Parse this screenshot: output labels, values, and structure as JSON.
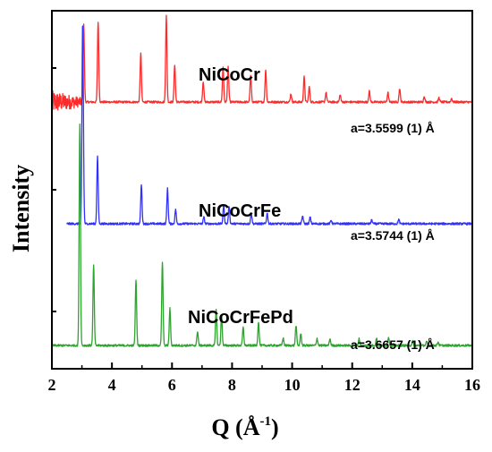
{
  "chart_data": {
    "type": "line",
    "xlabel": "Q (Å⁻¹)",
    "xlabel_main": "Q (Å",
    "xlabel_sup": "-1",
    "xlabel_tail": ")",
    "ylabel": "Intensity",
    "xlim": [
      2,
      16
    ],
    "x_ticks": [
      2,
      4,
      6,
      8,
      10,
      12,
      14,
      16
    ],
    "x_tick_labels": [
      "2",
      "4",
      "6",
      "8",
      "10",
      "12",
      "14",
      "16"
    ],
    "y_ticks": "unlabeled",
    "grid": false,
    "series": [
      {
        "name": "NiCoCr",
        "lattice_label": "a=3.5599 (1) Å",
        "color": "#ff2a2a",
        "x_start": 2.0,
        "noise_until": 3.0,
        "baseline": 0.745,
        "peaks": [
          [
            3.06,
            0.218
          ],
          [
            3.54,
            0.225
          ],
          [
            4.96,
            0.136
          ],
          [
            5.81,
            0.241
          ],
          [
            6.09,
            0.105
          ],
          [
            7.04,
            0.058
          ],
          [
            7.7,
            0.098
          ],
          [
            7.87,
            0.098
          ],
          [
            8.62,
            0.074
          ],
          [
            9.12,
            0.09
          ],
          [
            9.96,
            0.023
          ],
          [
            10.4,
            0.07
          ],
          [
            10.57,
            0.042
          ],
          [
            11.13,
            0.027
          ],
          [
            11.6,
            0.02
          ],
          [
            12.57,
            0.03
          ],
          [
            13.19,
            0.026
          ],
          [
            13.58,
            0.038
          ],
          [
            14.4,
            0.016
          ],
          [
            14.89,
            0.012
          ],
          [
            15.31,
            0.01
          ]
        ]
      },
      {
        "name": "NiCoCrFe",
        "lattice_label": "a=3.5744 (1) Å",
        "color": "#3131ff",
        "x_start": 2.5,
        "baseline": 0.405,
        "peaks": [
          [
            3.02,
            0.432
          ],
          [
            3.04,
            0.18
          ],
          [
            3.52,
            0.189
          ],
          [
            4.98,
            0.109
          ],
          [
            5.85,
            0.098
          ],
          [
            6.12,
            0.04
          ],
          [
            7.06,
            0.018
          ],
          [
            7.72,
            0.051
          ],
          [
            7.9,
            0.05
          ],
          [
            8.64,
            0.029
          ],
          [
            9.17,
            0.03
          ],
          [
            10.35,
            0.022
          ],
          [
            10.6,
            0.018
          ],
          [
            11.3,
            0.01
          ],
          [
            12.65,
            0.01
          ],
          [
            13.55,
            0.012
          ]
        ]
      },
      {
        "name": "NiCoCrFePd",
        "lattice_label": "a=3.6657 (1) Å",
        "color": "#2ea32e",
        "x_start": 2.0,
        "baseline": 0.065,
        "peaks": [
          [
            2.93,
            0.62
          ],
          [
            3.39,
            0.225
          ],
          [
            4.8,
            0.184
          ],
          [
            5.68,
            0.234
          ],
          [
            5.93,
            0.103
          ],
          [
            6.85,
            0.04
          ],
          [
            7.47,
            0.102
          ],
          [
            7.65,
            0.084
          ],
          [
            8.37,
            0.05
          ],
          [
            8.88,
            0.066
          ],
          [
            9.7,
            0.021
          ],
          [
            10.13,
            0.056
          ],
          [
            10.29,
            0.033
          ],
          [
            10.83,
            0.02
          ],
          [
            11.26,
            0.019
          ],
          [
            12.23,
            0.019
          ],
          [
            12.81,
            0.02
          ],
          [
            13.21,
            0.024
          ],
          [
            14.01,
            0.012
          ],
          [
            14.48,
            0.01
          ],
          [
            14.86,
            0.01
          ]
        ]
      }
    ]
  }
}
